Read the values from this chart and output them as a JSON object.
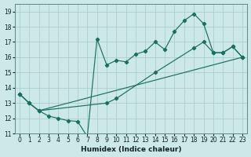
{
  "xlabel": "Humidex (Indice chaleur)",
  "xlim": [
    -0.5,
    23.5
  ],
  "ylim": [
    11,
    19.5
  ],
  "yticks": [
    11,
    12,
    13,
    14,
    15,
    16,
    17,
    18,
    19
  ],
  "xticks": [
    0,
    1,
    2,
    3,
    4,
    5,
    6,
    7,
    8,
    9,
    10,
    11,
    12,
    13,
    14,
    15,
    16,
    17,
    18,
    19,
    20,
    21,
    22,
    23
  ],
  "line_color": "#1a7060",
  "bg_color": "#cce8e8",
  "grid_color": "#aacccc",
  "line1_x": [
    0,
    1,
    2,
    3,
    4,
    5,
    6,
    7,
    8,
    9,
    10,
    11,
    12,
    13,
    14,
    15,
    16,
    17,
    18,
    19,
    20,
    21,
    22,
    23
  ],
  "line1_y": [
    13.6,
    13.0,
    12.5,
    12.15,
    12.0,
    11.85,
    11.8,
    10.8,
    17.2,
    15.5,
    15.8,
    15.7,
    16.2,
    16.4,
    17.0,
    16.5,
    17.7,
    18.4,
    18.85,
    18.2,
    16.3,
    16.3,
    16.7,
    16.0
  ],
  "line1_markers_x": [
    0,
    1,
    2,
    3,
    4,
    5,
    6,
    7,
    8,
    9,
    10,
    11,
    12,
    13,
    14,
    15,
    16,
    17,
    18,
    19,
    20,
    21,
    22,
    23
  ],
  "line1_markers_y": [
    13.6,
    13.0,
    12.5,
    12.15,
    12.0,
    11.85,
    11.8,
    10.8,
    17.2,
    15.5,
    15.8,
    15.7,
    16.2,
    16.4,
    17.0,
    16.5,
    17.7,
    18.4,
    18.85,
    18.2,
    16.3,
    16.3,
    16.7,
    16.0
  ],
  "line2_x": [
    0,
    1,
    2,
    9,
    10,
    14,
    18,
    19,
    20,
    21,
    22,
    23
  ],
  "line2_y": [
    13.6,
    13.0,
    12.5,
    13.0,
    13.3,
    15.0,
    16.6,
    17.0,
    16.3,
    16.3,
    16.7,
    16.0
  ],
  "line3_x": [
    0,
    1,
    2,
    23
  ],
  "line3_y": [
    13.6,
    13.0,
    12.5,
    16.0
  ]
}
